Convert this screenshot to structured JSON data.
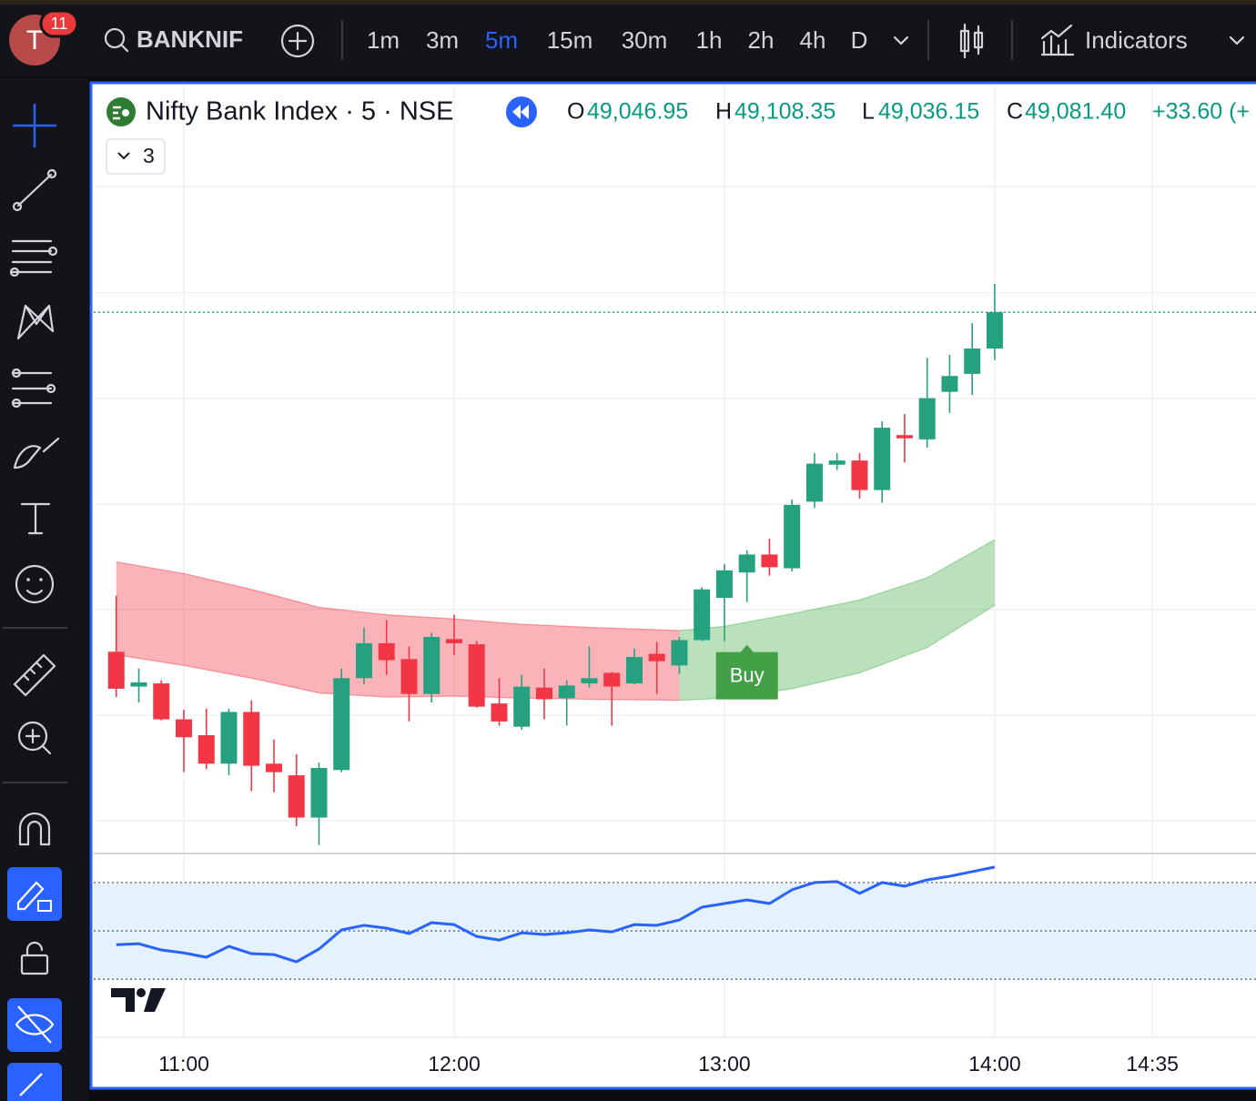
{
  "toolbar": {
    "avatar": "T",
    "notifications": "11",
    "symbol": "BANKNIF",
    "timeframes": [
      "1m",
      "3m",
      "5m",
      "15m",
      "30m",
      "1h",
      "2h",
      "4h",
      "D"
    ],
    "active_timeframe": "5m",
    "indicators": "Indicators"
  },
  "chart_data": {
    "type": "candlestick",
    "title": "Nifty Bank Index · 5 · NSE",
    "ohlc_legend": [
      {
        "key": "O",
        "label": "49,046.95"
      },
      {
        "key": "H",
        "label": "49,108.35"
      },
      {
        "key": "L",
        "label": "49,036.15"
      },
      {
        "key": "C",
        "label": "49,081.40"
      }
    ],
    "change_label": "+33.60 (+",
    "indicator_count": 3,
    "up_color": "#26a17f",
    "down_color": "#f23645",
    "candles": {
      "x": [
        "10:45",
        "10:50",
        "10:55",
        "11:00",
        "11:05",
        "11:10",
        "11:15",
        "11:20",
        "11:25",
        "11:30",
        "11:35",
        "11:40",
        "11:45",
        "11:50",
        "11:55",
        "12:00",
        "12:05",
        "12:10",
        "12:15",
        "12:20",
        "12:25",
        "12:30",
        "12:35",
        "12:40",
        "12:45",
        "12:50",
        "12:55",
        "13:00",
        "13:05",
        "13:10",
        "13:15",
        "13:20",
        "13:25",
        "13:30",
        "13:35",
        "13:40",
        "13:45",
        "13:50",
        "13:55",
        "14:00"
      ],
      "open": [
        48760,
        48727,
        48730,
        48696,
        48681,
        48654,
        48703,
        48654,
        48643,
        48603,
        48648,
        48735,
        48768,
        48753,
        48720,
        48772,
        48767,
        48711,
        48689,
        48726,
        48716,
        48730,
        48740,
        48730,
        48758,
        48747,
        48771,
        48811,
        48835,
        48852,
        48839,
        48902,
        48937,
        48941,
        48913,
        48965,
        48961,
        49006,
        49023,
        49046.95
      ],
      "high": [
        48813,
        48744,
        48733,
        48705,
        48706,
        48706,
        48714,
        48677,
        48663,
        48655,
        48744,
        48783,
        48790,
        48765,
        48778,
        48795,
        48770,
        48735,
        48738,
        48744,
        48733,
        48765,
        48741,
        48763,
        48769,
        48774,
        48821,
        48843,
        48856,
        48867,
        48904,
        48948,
        48948,
        48948,
        48978,
        48985,
        49038,
        49041,
        49071,
        49108.35
      ],
      "low": [
        48717,
        48712,
        48695,
        48646,
        48649,
        48643,
        48628,
        48627,
        48595,
        48577,
        48646,
        48729,
        48738,
        48694,
        48712,
        48757,
        48707,
        48690,
        48686,
        48696,
        48690,
        48726,
        48690,
        48729,
        48720,
        48739,
        48770,
        48770,
        48807,
        48832,
        48836,
        48896,
        48932,
        48905,
        48901,
        48939,
        48953,
        48986,
        49003,
        49036.15
      ],
      "close": [
        48725,
        48731,
        48696,
        48679,
        48654,
        48703,
        48652,
        48646,
        48603,
        48650,
        48735,
        48768,
        48752,
        48720,
        48774,
        48768,
        48708,
        48694,
        48727,
        48715,
        48728,
        48735,
        48727,
        48755,
        48751,
        48771,
        48819,
        48837,
        48852,
        48840,
        48899,
        48938,
        48941,
        48913,
        48972,
        48962,
        49000,
        49021,
        49047,
        49081.4
      ]
    },
    "xlim": [
      "10:40",
      "14:58"
    ],
    "xticks": [
      "11:00",
      "12:00",
      "13:00",
      "14:00",
      "14:35"
    ],
    "ylim": [
      48569,
      49252
    ],
    "yticks": [
      48600,
      48700,
      48800,
      48900,
      49000,
      49100,
      49200
    ],
    "grid": true,
    "bands": [
      {
        "x": [
          "10:45",
          "11:00",
          "11:15",
          "11:30",
          "11:45",
          "12:00",
          "12:15",
          "12:30",
          "12:50"
        ],
        "upper": [
          48845,
          48834,
          48819,
          48802,
          48795,
          48791,
          48786,
          48783,
          48780
        ],
        "lower": [
          48757,
          48747,
          48735,
          48721,
          48717,
          48718,
          48716,
          48715,
          48714
        ],
        "color": "#f23645"
      },
      {
        "x": [
          "12:50",
          "13:00",
          "13:15",
          "13:30",
          "13:45",
          "14:00"
        ],
        "upper": [
          48780,
          48784,
          48796,
          48809,
          48830,
          48866
        ],
        "lower": [
          48714,
          48716,
          48725,
          48740,
          48764,
          48804
        ],
        "color": "#4caf50"
      }
    ],
    "annotations": [
      {
        "x": "13:05",
        "text": "Buy",
        "color": "#43a047"
      }
    ],
    "oscillator": {
      "values": [
        44.3,
        44.7,
        42.1,
        40.9,
        39.1,
        43.6,
        40.6,
        40.2,
        37.2,
        42.5,
        50.4,
        52.3,
        51.1,
        48.9,
        53.4,
        52.6,
        47.7,
        46.2,
        49.2,
        48.5,
        49.2,
        50.4,
        49.6,
        52.6,
        52.3,
        54.5,
        59.8,
        61.3,
        62.8,
        61.3,
        67.0,
        70.0,
        70.4,
        65.5,
        70.0,
        68.5,
        71.1,
        72.6,
        74.5,
        76.4
      ],
      "color": "#2962ff",
      "ylim": [
        6,
        82
      ],
      "levels": [
        70,
        50,
        30
      ],
      "fill": "#e3f2fd"
    }
  }
}
